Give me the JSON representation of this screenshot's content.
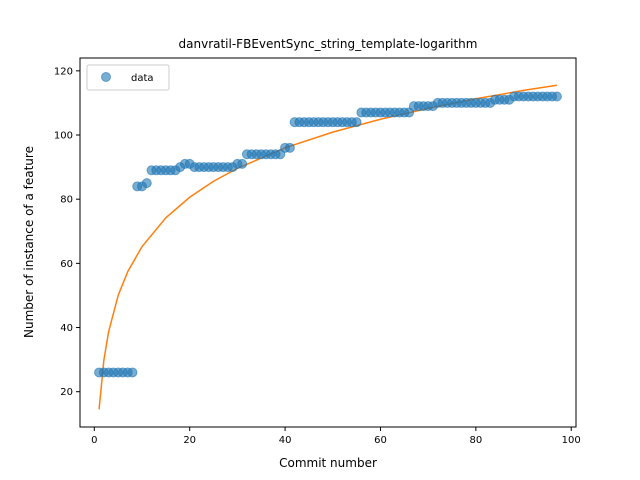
{
  "chart_data": {
    "type": "scatter",
    "title": "danvratil-FBEventSync_string_template-logarithm",
    "xlabel": "Commit number",
    "ylabel": "Number of instance of a feature",
    "xlim": [
      -3,
      101
    ],
    "ylim": [
      9,
      124
    ],
    "xticks": [
      0,
      20,
      40,
      60,
      80,
      100
    ],
    "yticks": [
      20,
      40,
      60,
      80,
      100,
      120
    ],
    "legend": {
      "position": "top-left",
      "entries": [
        "data"
      ]
    },
    "colors": {
      "data": "#1f77b4",
      "fit": "#ff7f0e"
    },
    "series": [
      {
        "name": "data",
        "style": "markers",
        "x": [
          1,
          2,
          3,
          4,
          5,
          6,
          7,
          8,
          9,
          10,
          11,
          12,
          13,
          14,
          15,
          16,
          17,
          18,
          19,
          20,
          21,
          22,
          23,
          24,
          25,
          26,
          27,
          28,
          29,
          30,
          31,
          32,
          33,
          34,
          35,
          36,
          37,
          38,
          39,
          40,
          41,
          42,
          43,
          44,
          45,
          46,
          47,
          48,
          49,
          50,
          51,
          52,
          53,
          54,
          55,
          56,
          57,
          58,
          59,
          60,
          61,
          62,
          63,
          64,
          65,
          66,
          67,
          68,
          69,
          70,
          71,
          72,
          73,
          74,
          75,
          76,
          77,
          78,
          79,
          80,
          81,
          82,
          83,
          84,
          85,
          86,
          87,
          88,
          89,
          90,
          91,
          92,
          93,
          94,
          95,
          96,
          97
        ],
        "y": [
          26,
          26,
          26,
          26,
          26,
          26,
          26,
          26,
          84,
          84,
          85,
          89,
          89,
          89,
          89,
          89,
          89,
          90,
          91,
          91,
          90,
          90,
          90,
          90,
          90,
          90,
          90,
          90,
          90,
          91,
          91,
          94,
          94,
          94,
          94,
          94,
          94,
          94,
          94,
          96,
          96,
          104,
          104,
          104,
          104,
          104,
          104,
          104,
          104,
          104,
          104,
          104,
          104,
          104,
          104,
          107,
          107,
          107,
          107,
          107,
          107,
          107,
          107,
          107,
          107,
          107,
          109,
          109,
          109,
          109,
          109,
          110,
          110,
          110,
          110,
          110,
          110,
          110,
          110,
          110,
          110,
          110,
          110,
          111,
          111,
          111,
          111,
          112,
          112,
          112,
          112,
          112,
          112,
          112,
          112,
          112,
          112
        ]
      },
      {
        "style": "line",
        "model": "logarithmic",
        "x": [
          1,
          2,
          3,
          5,
          7,
          10,
          15,
          20,
          25,
          30,
          40,
          50,
          60,
          70,
          80,
          90,
          97
        ],
        "y": [
          14.5,
          29.8,
          38.7,
          50.0,
          57.4,
          65.2,
          74.2,
          80.6,
          85.6,
          89.6,
          96.0,
          100.9,
          104.9,
          108.3,
          111.3,
          113.9,
          115.5
        ]
      }
    ]
  }
}
